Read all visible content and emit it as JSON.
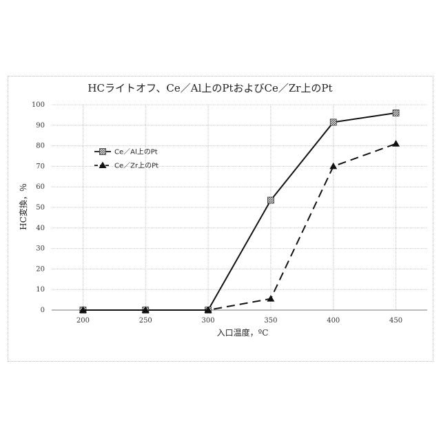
{
  "chart_data": {
    "type": "line",
    "title": "HCライトオフ、Ce／Al上のPtおよびCe／Zr上のPt",
    "xlabel": "入口温度，ºC",
    "ylabel": "HC変換，％",
    "x": [
      200,
      250,
      300,
      350,
      400,
      450
    ],
    "xticks": [
      "200",
      "250",
      "300",
      "350",
      "400",
      "450"
    ],
    "yticks": [
      "0",
      "10",
      "20",
      "30",
      "40",
      "50",
      "60",
      "70",
      "80",
      "90",
      "100"
    ],
    "ylim": [
      0,
      100
    ],
    "grid": true,
    "legend_position": "left",
    "series": [
      {
        "name": "Ce／Al上のPt",
        "values": [
          0,
          0,
          0,
          53.5,
          91.5,
          96
        ],
        "line_style": "solid",
        "marker": "square-hatched",
        "color": "#111111"
      },
      {
        "name": "Ce／Zr上のPt",
        "values": [
          0,
          0,
          0,
          5.5,
          70,
          81
        ],
        "line_style": "dashed",
        "marker": "triangle",
        "color": "#111111"
      }
    ]
  }
}
